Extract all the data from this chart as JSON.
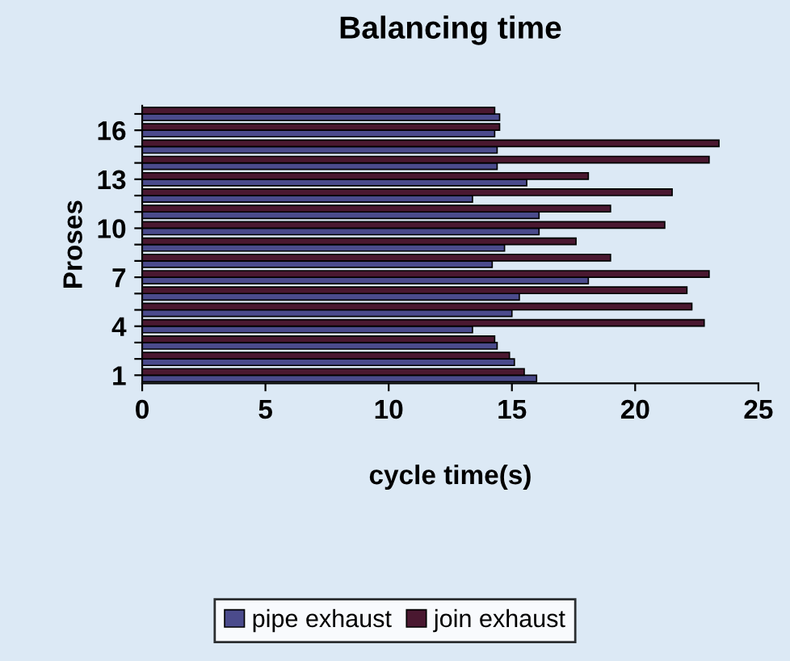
{
  "chart_data": {
    "type": "bar",
    "orientation": "horizontal",
    "title": "Balancing time",
    "xlabel": "cycle time(s)",
    "ylabel": "Proses",
    "categories": [
      null,
      "16",
      null,
      null,
      "13",
      null,
      null,
      "10",
      null,
      null,
      "7",
      null,
      null,
      "4",
      null,
      null,
      "1"
    ],
    "series": [
      {
        "name": "pipe exhaust",
        "color": "#4b4b8c",
        "values": [
          14.5,
          14.3,
          14.4,
          14.4,
          15.6,
          13.4,
          16.1,
          16.1,
          14.7,
          14.2,
          18.1,
          15.3,
          15.0,
          13.4,
          14.4,
          15.1,
          16.0
        ]
      },
      {
        "name": "join exhaust",
        "color": "#4a1830",
        "values": [
          14.3,
          14.5,
          23.4,
          23.0,
          18.1,
          21.5,
          19.0,
          21.2,
          17.6,
          19.0,
          23.0,
          22.1,
          22.3,
          22.8,
          14.3,
          14.9,
          15.5
        ]
      }
    ],
    "xlim": [
      0,
      25
    ],
    "xticks": [
      0,
      5,
      10,
      15,
      20,
      25
    ],
    "grid": false,
    "legend": "bottom"
  }
}
